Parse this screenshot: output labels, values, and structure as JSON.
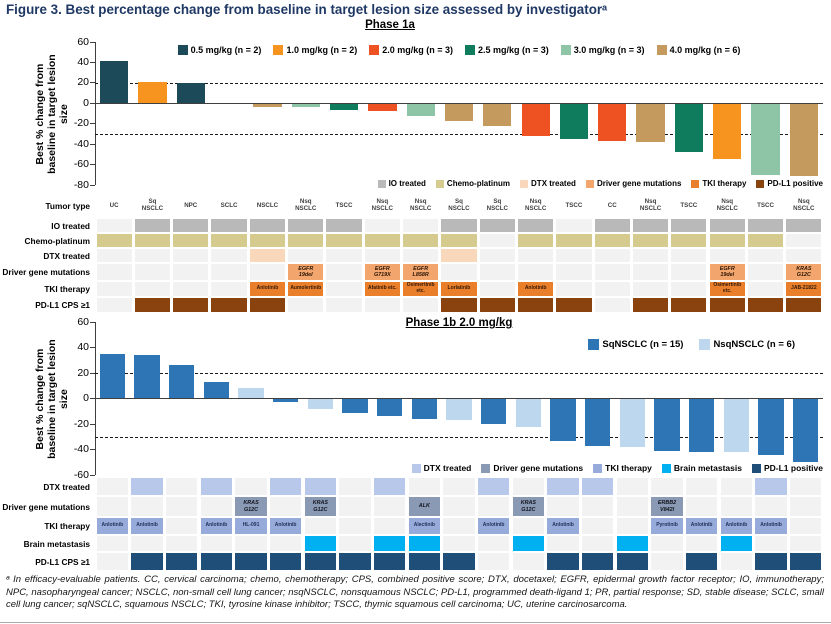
{
  "title": "Figure 3. Best percentage change from baseline in target lesion size assessed by investigatorᵃ",
  "footnote": "ᵃ In efficacy-evaluable patients. CC, cervical carcinoma; chemo, chemotherapy; CPS, combined positive score; DTX, docetaxel; EGFR, epidermal growth factor receptor; IO, immunotherapy; NPC, nasopharyngeal cancer; NSCLC, non-small cell lung cancer; nsqNSCLC, nonsquamous NSCLC; PD-L1, programmed death-ligand 1; PR, partial response; SD, stable disease; SCLC, small cell lung cancer; sqNSCLC, squamous NSCLC; TKI, tyrosine kinase inhibitor; TSCC, thymic squamous cell carcinoma; UC, uterine carcinosarcoma.",
  "chart_data": [
    {
      "id": "phase1a",
      "type": "bar",
      "title": "Phase 1a",
      "ylabel": "Best % change from baseline in target lesion size",
      "ylabel_lines": "Best % change from\nbaseline in target lesion\nsize",
      "ylim": [
        -80,
        60
      ],
      "yticks": [
        60,
        40,
        20,
        0,
        -20,
        -40,
        -60,
        -80
      ],
      "reference_lines": [
        20,
        -30
      ],
      "grid": false,
      "legend_position": "top-center",
      "categories": [
        "UC",
        "Sq NSCLC",
        "NPC",
        "SCLC",
        "NSCLC",
        "Nsq NSCLC",
        "TSCC",
        "Nsq NSCLC",
        "Nsq NSCLC",
        "Sq NSCLC",
        "Sq NSCLC",
        "Nsq NSCLC",
        "TSCC",
        "CC",
        "Nsq NSCLC",
        "TSCC",
        "Nsq NSCLC",
        "TSCC",
        "Nsq NSCLC"
      ],
      "values": [
        41,
        21,
        20,
        0,
        -4,
        -4,
        -7,
        -8,
        -12,
        -17,
        -22,
        -32,
        -35,
        -37,
        -38,
        -48,
        -55,
        -70,
        -71
      ],
      "series_key": [
        "0.5",
        "1.0",
        "0.5",
        "4.0",
        "4.0",
        "3.0",
        "2.5",
        "2.0",
        "3.0",
        "4.0",
        "4.0",
        "2.0",
        "2.5",
        "2.0",
        "4.0",
        "2.5",
        "1.0",
        "3.0",
        "4.0"
      ],
      "series_colors": {
        "0.5": "#1d4a59",
        "1.0": "#f79420",
        "2.0": "#ee5223",
        "2.5": "#0f7d5d",
        "3.0": "#8ec5a6",
        "4.0": "#c49a5f"
      },
      "legend": [
        {
          "label": "0.5 mg/kg (n = 2)",
          "color": "#1d4a59"
        },
        {
          "label": "1.0 mg/kg (n = 2)",
          "color": "#f79420"
        },
        {
          "label": "2.0 mg/kg (n = 3)",
          "color": "#ee5223"
        },
        {
          "label": "2.5 mg/kg (n = 3)",
          "color": "#0f7d5d"
        },
        {
          "label": "3.0 mg/kg (n = 3)",
          "color": "#8ec5a6"
        },
        {
          "label": "4.0 mg/kg (n = 6)",
          "color": "#c49a5f"
        }
      ]
    },
    {
      "id": "phase1b",
      "type": "bar",
      "title": "Phase 1b 2.0 mg/kg",
      "ylabel": "Best % change from baseline in target lesion size",
      "ylabel_lines": "Best % change from\nbaseline in target lesion\nsize",
      "ylim": [
        -60,
        60
      ],
      "yticks": [
        60,
        40,
        20,
        0,
        -20,
        -40,
        -60
      ],
      "reference_lines": [
        20,
        -30
      ],
      "grid": false,
      "legend_position": "top-right",
      "values": [
        35,
        34,
        26,
        13,
        8,
        -3,
        -8,
        -11,
        -14,
        -16,
        -17,
        -20,
        -22,
        -33,
        -37,
        -38,
        -41,
        -42,
        -42,
        -44,
        -50
      ],
      "series_key": [
        "sq",
        "sq",
        "sq",
        "sq",
        "nsq",
        "sq",
        "nsq",
        "sq",
        "sq",
        "sq",
        "nsq",
        "sq",
        "nsq",
        "sq",
        "sq",
        "nsq",
        "sq",
        "sq",
        "nsq",
        "sq",
        "sq"
      ],
      "series_colors": {
        "sq": "#2e75b6",
        "nsq": "#bdd7ee"
      },
      "legend": [
        {
          "label": "SqNSCLC (n = 15)",
          "color": "#2e75b6"
        },
        {
          "label": "NsqNSCLC (n = 6)",
          "color": "#bdd7ee"
        }
      ]
    }
  ],
  "phase1a_table": {
    "row_labels": [
      "Tumor type",
      "IO treated",
      "Chemo-platinum",
      "DTX treated",
      "Driver gene mutations",
      "TKI therapy",
      "PD-L1 CPS ≥1"
    ],
    "tumor_types": [
      "UC",
      "Sq\nNSCLC",
      "NPC",
      "SCLC",
      "NSCLC",
      "Nsq\nNSCLC",
      "TSCC",
      "Nsq\nNSCLC",
      "Nsq\nNSCLC",
      "Sq\nNSCLC",
      "Sq\nNSCLC",
      "Nsq\nNSCLC",
      "TSCC",
      "CC",
      "Nsq\nNSCLC",
      "TSCC",
      "Nsq\nNSCLC",
      "TSCC",
      "Nsq\nNSCLC"
    ],
    "io_cols": [
      1,
      2,
      3,
      4,
      5,
      6,
      9,
      10,
      11,
      13,
      14,
      15,
      16,
      17,
      18
    ],
    "chemo_cols": [
      0,
      1,
      2,
      3,
      4,
      5,
      6,
      7,
      8,
      9,
      11,
      12,
      13,
      14,
      15,
      16,
      17
    ],
    "dtx_cols": [
      4,
      9
    ],
    "driver_cells": {
      "5": "EGFR\n19del",
      "7": "EGFR\nG719X",
      "8": "EGFR\nL858R",
      "16": "EGFR\n19del",
      "18": "KRAS\nG12C"
    },
    "tki_cells": {
      "4": "Anlotinib",
      "5": "Aumolertinib",
      "7": "Afatinib etc.",
      "8": "Osimertinib etc.",
      "9": "Lorlatinib",
      "11": "Anlotinib",
      "16": "Osimertinib etc.",
      "18": "JAB-21822"
    },
    "pdl1_cols": [
      1,
      2,
      3,
      4,
      9,
      10,
      11,
      12,
      14,
      15,
      16,
      17,
      18
    ],
    "colors": {
      "io": "#b9b9b9",
      "chemo": "#d5cb8e",
      "dtx": "#f9d7ba",
      "driver": "#f2a56d",
      "tki": "#e97f2a",
      "pdl1": "#8a430f",
      "empty": "#f2f2f2"
    },
    "legend": [
      {
        "label": "IO treated",
        "color": "#b9b9b9"
      },
      {
        "label": "Chemo-platinum",
        "color": "#d5cb8e"
      },
      {
        "label": "DTX treated",
        "color": "#f9d7ba"
      },
      {
        "label": "Driver gene mutations",
        "color": "#f2a56d"
      },
      {
        "label": "TKI therapy",
        "color": "#e97f2a"
      },
      {
        "label": "PD-L1 positive",
        "color": "#8a430f"
      }
    ]
  },
  "phase1b_table": {
    "row_labels": [
      "DTX treated",
      "Driver gene mutations",
      "TKI therapy",
      "Brain metastasis",
      "PD-L1 CPS ≥1"
    ],
    "dtx_cols": [
      1,
      3,
      5,
      6,
      8,
      11,
      13,
      14,
      19
    ],
    "driver_cells": {
      "4": "KRAS\nG12C",
      "6": "KRAS\nG12C",
      "9": "ALK",
      "12": "KRAS\nG12C",
      "16": "ERBB2\nV842I"
    },
    "tki_cells": {
      "0": "Anlotinib",
      "1": "Anlotinib",
      "3": "Anlotinib",
      "4": "HL-091",
      "5": "Anlotinib",
      "9": "Alectinib",
      "11": "Anlotinib",
      "13": "Anlotinib",
      "16": "Pyrotinib",
      "17": "Anlotinib",
      "18": "Anlotinib",
      "19": "Anlotinib"
    },
    "brain_cols": [
      6,
      8,
      9,
      12,
      15,
      18
    ],
    "pdl1_cols": [
      1,
      2,
      3,
      4,
      5,
      6,
      7,
      8,
      9,
      10,
      13,
      14,
      15,
      17,
      19,
      20
    ],
    "colors": {
      "dtx": "#b7c8ea",
      "driver": "#8a9ab4",
      "tki": "#97abdb",
      "brain": "#00b0f0",
      "pdl1": "#1f4e79",
      "empty": "#f2f2f2"
    },
    "legend": [
      {
        "label": "DTX treated",
        "color": "#b7c8ea"
      },
      {
        "label": "Driver gene mutations",
        "color": "#8a9ab4"
      },
      {
        "label": "TKI therapy",
        "color": "#97abdb"
      },
      {
        "label": "Brain metastasis",
        "color": "#00b0f0"
      },
      {
        "label": "PD-L1 positive",
        "color": "#1f4e79"
      }
    ]
  }
}
